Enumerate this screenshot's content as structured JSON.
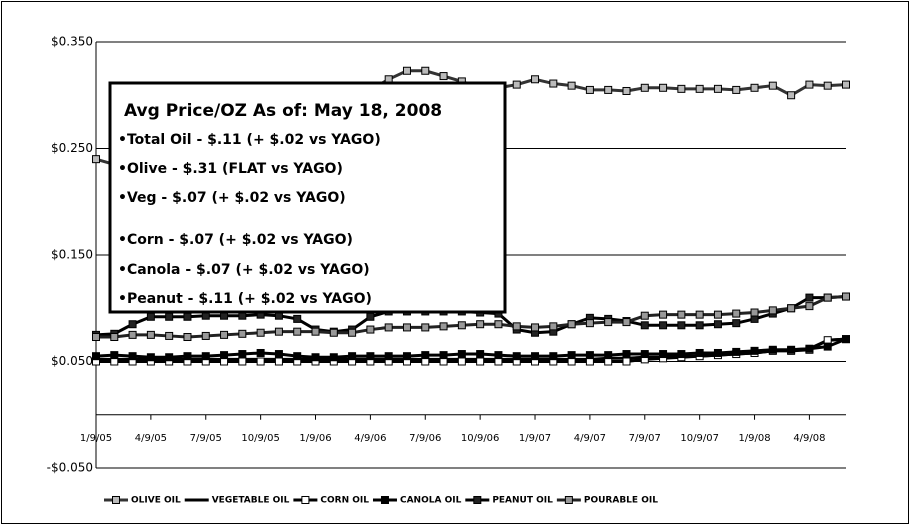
{
  "chart_data": {
    "type": "line",
    "categories": [
      "1/9/05",
      null,
      null,
      "4/9/05",
      null,
      null,
      "7/9/05",
      null,
      null,
      "10/9/05",
      null,
      null,
      "1/9/06",
      null,
      null,
      "4/9/06",
      null,
      null,
      "7/9/06",
      null,
      null,
      "10/9/06",
      null,
      null,
      "1/9/07",
      null,
      null,
      "4/9/07",
      null,
      null,
      "7/9/07",
      null,
      null,
      "10/9/07",
      null,
      null,
      "1/9/08",
      null,
      null,
      "4/9/08",
      null,
      null
    ],
    "ylim": [
      -0.05,
      0.35
    ],
    "yticks": [
      {
        "value": -0.05,
        "label": "-$0.050"
      },
      {
        "value": 0.05,
        "label": "$0.050"
      },
      {
        "value": 0.15,
        "label": "$0.150"
      },
      {
        "value": 0.25,
        "label": "$0.250"
      },
      {
        "value": 0.35,
        "label": "$0.350"
      }
    ],
    "grid": true,
    "legend": "bottom",
    "series": [
      {
        "name": "OLIVE OIL",
        "color": "#333333",
        "marker": "square",
        "marker_fill": "#bbbbbb",
        "values": [
          0.24,
          0.235,
          0.24,
          0.245,
          0.25,
          0.255,
          0.26,
          0.265,
          0.27,
          0.275,
          0.28,
          0.285,
          0.29,
          0.295,
          0.3,
          0.305,
          0.315,
          0.323,
          0.323,
          0.318,
          0.313,
          0.307,
          0.307,
          0.31,
          0.315,
          0.311,
          0.309,
          0.305,
          0.305,
          0.304,
          0.307,
          0.307,
          0.306,
          0.306,
          0.306,
          0.305,
          0.307,
          0.309,
          0.3,
          0.31,
          0.309,
          0.31
        ]
      },
      {
        "name": "VEGETABLE OIL",
        "color": "#000000",
        "marker": "none",
        "marker_fill": "#000000",
        "values": [
          0.052,
          0.052,
          0.052,
          0.052,
          0.052,
          0.052,
          0.052,
          0.052,
          0.052,
          0.052,
          0.052,
          0.052,
          0.052,
          0.052,
          0.052,
          0.052,
          0.052,
          0.052,
          0.052,
          0.052,
          0.052,
          0.052,
          0.052,
          0.052,
          0.052,
          0.052,
          0.052,
          0.052,
          0.053,
          0.053,
          0.054,
          0.054,
          0.055,
          0.055,
          0.056,
          0.057,
          0.058,
          0.06,
          0.061,
          0.062,
          0.07,
          0.071
        ]
      },
      {
        "name": "CORN OIL",
        "color": "#000000",
        "marker": "square",
        "marker_fill": "#ffffff",
        "values": [
          0.05,
          0.05,
          0.05,
          0.05,
          0.05,
          0.05,
          0.05,
          0.05,
          0.05,
          0.05,
          0.05,
          0.05,
          0.05,
          0.05,
          0.05,
          0.05,
          0.05,
          0.05,
          0.05,
          0.05,
          0.05,
          0.05,
          0.05,
          0.05,
          0.05,
          0.05,
          0.05,
          0.05,
          0.05,
          0.05,
          0.052,
          0.053,
          0.054,
          0.055,
          0.056,
          0.057,
          0.058,
          0.06,
          0.06,
          0.061,
          0.07,
          0.071
        ]
      },
      {
        "name": "CANOLA OIL",
        "color": "#000000",
        "marker": "square",
        "marker_fill": "#000000",
        "values": [
          0.055,
          0.056,
          0.055,
          0.054,
          0.054,
          0.055,
          0.055,
          0.056,
          0.057,
          0.058,
          0.057,
          0.055,
          0.054,
          0.054,
          0.055,
          0.055,
          0.055,
          0.055,
          0.056,
          0.056,
          0.057,
          0.057,
          0.056,
          0.055,
          0.055,
          0.055,
          0.056,
          0.056,
          0.056,
          0.057,
          0.057,
          0.057,
          0.057,
          0.058,
          0.058,
          0.059,
          0.06,
          0.061,
          0.061,
          0.062,
          0.064,
          0.071
        ]
      },
      {
        "name": "PEANUT OIL",
        "color": "#000000",
        "marker": "square",
        "marker_fill": "#222222",
        "values": [
          0.075,
          0.076,
          0.085,
          0.092,
          0.092,
          0.092,
          0.093,
          0.093,
          0.093,
          0.094,
          0.093,
          0.09,
          0.08,
          0.078,
          0.08,
          0.092,
          0.097,
          0.097,
          0.097,
          0.097,
          0.097,
          0.096,
          0.095,
          0.08,
          0.077,
          0.078,
          0.085,
          0.091,
          0.09,
          0.088,
          0.084,
          0.084,
          0.084,
          0.084,
          0.085,
          0.086,
          0.09,
          0.095,
          0.1,
          0.11,
          0.11,
          0.111
        ]
      },
      {
        "name": "POURABLE OIL",
        "color": "#222222",
        "marker": "square",
        "marker_fill": "#999999",
        "values": [
          0.073,
          0.073,
          0.075,
          0.075,
          0.074,
          0.073,
          0.074,
          0.075,
          0.076,
          0.077,
          0.078,
          0.078,
          0.078,
          0.077,
          0.077,
          0.08,
          0.082,
          0.082,
          0.082,
          0.083,
          0.084,
          0.085,
          0.085,
          0.083,
          0.082,
          0.083,
          0.085,
          0.086,
          0.087,
          0.087,
          0.093,
          0.094,
          0.094,
          0.094,
          0.094,
          0.095,
          0.096,
          0.098,
          0.1,
          0.102,
          0.11,
          0.111
        ]
      }
    ],
    "annotation": {
      "title": "Avg Price/OZ As of: May 18, 2008",
      "lines": [
        "•Total Oil - $.11 (+ $.02 vs YAGO)",
        "•Olive - $.31 (FLAT vs YAGO)",
        "•Veg - $.07 (+ $.02 vs YAGO)",
        "•Corn - $.07 (+ $.02 vs YAGO)",
        "•Canola - $.07 (+ $.02 vs YAGO)",
        "•Peanut - $.11 (+ $.02 vs YAGO)"
      ]
    }
  }
}
